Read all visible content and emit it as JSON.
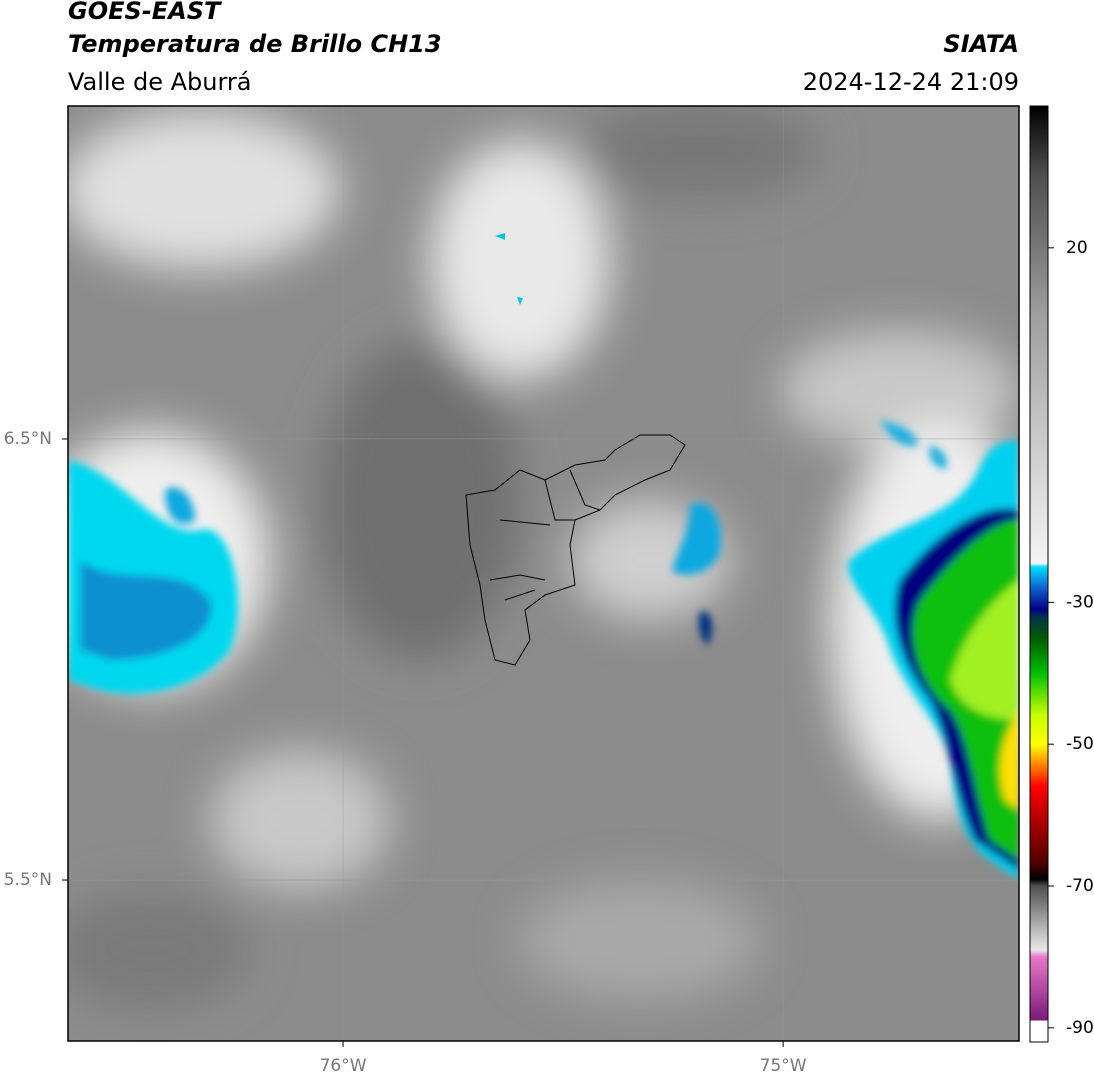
{
  "header": {
    "title": "GOES-EAST",
    "subtitle": "Temperatura de Brillo CH13",
    "region": "Valle de Aburrá",
    "source": "SIATA",
    "timestamp": "2024-12-24 21:09"
  },
  "map": {
    "xlim": [
      -76.625,
      -74.464
    ],
    "ylim": [
      5.135,
      7.255
    ],
    "xticks": [
      {
        "value": -76,
        "label": "76°W"
      },
      {
        "value": -75,
        "label": "75°W"
      }
    ],
    "yticks": [
      {
        "value": 6.5,
        "label": "6.5°N"
      },
      {
        "value": 5.5,
        "label": "5.5°N"
      }
    ],
    "grid": true
  },
  "colorbar": {
    "lim": [
      -92,
      40
    ],
    "ticks": [
      20,
      -30,
      -50,
      -70,
      -90
    ],
    "stops": [
      [
        -92,
        "#ffffff"
      ],
      [
        -89,
        "#ffffff"
      ],
      [
        -89,
        "#7a1a7a"
      ],
      [
        -80,
        "#e878c8"
      ],
      [
        -79,
        "#e8e8e8"
      ],
      [
        -77,
        "#c8c8c8"
      ],
      [
        -70,
        "#505050"
      ],
      [
        -69,
        "#000000"
      ],
      [
        -67,
        "#4a0000"
      ],
      [
        -56,
        "#ff0000"
      ],
      [
        -53,
        "#ff8000"
      ],
      [
        -50,
        "#ffff00"
      ],
      [
        -46,
        "#c8ff00"
      ],
      [
        -40,
        "#00c000"
      ],
      [
        -35,
        "#005a00"
      ],
      [
        -32,
        "#003050"
      ],
      [
        -31,
        "#000080"
      ],
      [
        -28,
        "#1060d0"
      ],
      [
        -25,
        "#00e0ff"
      ],
      [
        -24.5,
        "#f4f4f4"
      ],
      [
        10,
        "#a0a0a0"
      ],
      [
        30,
        "#505050"
      ],
      [
        40,
        "#000000"
      ]
    ]
  }
}
